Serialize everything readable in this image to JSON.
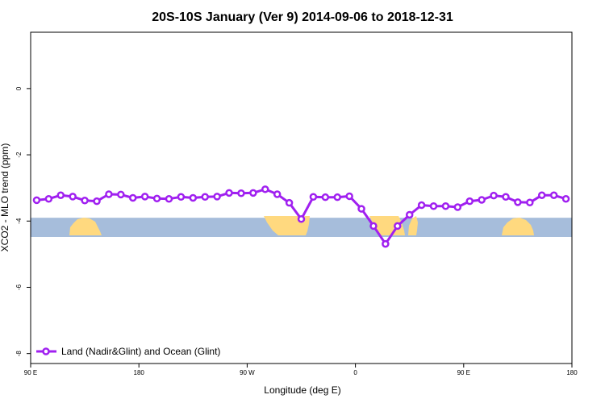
{
  "chart_data": {
    "type": "line",
    "title": "20S-10S January (Ver 9)   2014-09-06 to 2018-12-31",
    "xlabel": "Longitude (deg E)",
    "ylabel": "XCO2 - MLO trend (ppm)",
    "xlim": [
      90,
      540
    ],
    "ylim": [
      -8.3,
      1.7
    ],
    "x_ticks": [
      {
        "value": 90,
        "label": "90 E"
      },
      {
        "value": 180,
        "label": "180"
      },
      {
        "value": 270,
        "label": "90 W"
      },
      {
        "value": 360,
        "label": "0"
      },
      {
        "value": 450,
        "label": "90 E"
      },
      {
        "value": 540,
        "label": "180"
      }
    ],
    "y_ticks": [
      {
        "value": 0,
        "label": "0"
      },
      {
        "value": -2,
        "label": "-2"
      },
      {
        "value": -4,
        "label": "-4"
      },
      {
        "value": -6,
        "label": "-6"
      },
      {
        "value": -8,
        "label": "-8"
      }
    ],
    "series": [
      {
        "name": "Land (Nadir&Glint) and Ocean (Glint)",
        "color": "#a020f0",
        "x": [
          95,
          105,
          115,
          125,
          135,
          145,
          155,
          165,
          175,
          185,
          195,
          205,
          215,
          225,
          235,
          245,
          255,
          265,
          275,
          285,
          295,
          305,
          315,
          325,
          335,
          345,
          355,
          365,
          375,
          385,
          395,
          405,
          415,
          425,
          435,
          445,
          455,
          465,
          475,
          485,
          495,
          505,
          515,
          525,
          535
        ],
        "y": [
          -3.37,
          -3.33,
          -3.22,
          -3.26,
          -3.38,
          -3.4,
          -3.19,
          -3.2,
          -3.3,
          -3.26,
          -3.32,
          -3.33,
          -3.27,
          -3.3,
          -3.27,
          -3.26,
          -3.15,
          -3.16,
          -3.15,
          -3.04,
          -3.19,
          -3.45,
          -3.94,
          -3.27,
          -3.28,
          -3.28,
          -3.25,
          -3.63,
          -4.15,
          -4.69,
          -4.15,
          -3.81,
          -3.52,
          -3.55,
          -3.55,
          -3.58,
          -3.4,
          -3.36,
          -3.23,
          -3.27,
          -3.43,
          -3.44,
          -3.22,
          -3.22,
          -3.33
        ]
      }
    ],
    "background_band": {
      "ocean_color": "#a6bddb",
      "land_color": "#ffd97f",
      "y_top": -3.9,
      "y_bottom": -4.48
    },
    "legend": {
      "position": "bottom-left",
      "label": "Land (Nadir&Glint) and Ocean (Glint)"
    }
  }
}
